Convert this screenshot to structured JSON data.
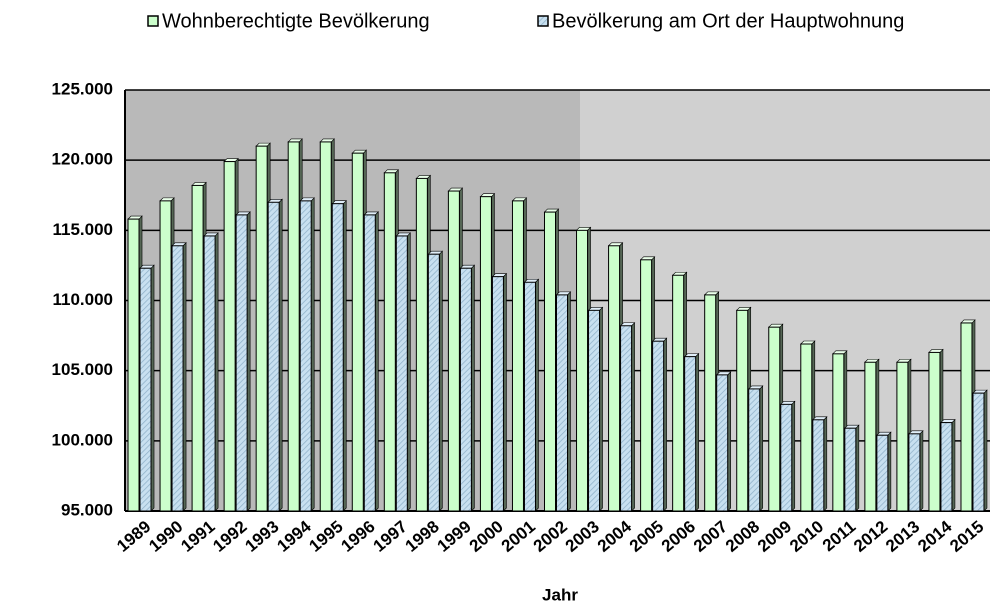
{
  "chart_data": {
    "type": "bar",
    "x_label": "Jahr",
    "categories": [
      "1989",
      "1990",
      "1991",
      "1992",
      "1993",
      "1994",
      "1995",
      "1996",
      "1997",
      "1998",
      "1999",
      "2000",
      "2001",
      "2002",
      "2003",
      "2004",
      "2005",
      "2006",
      "2007",
      "2008",
      "2009",
      "2010",
      "2011",
      "2012",
      "2013",
      "2014",
      "2015"
    ],
    "series": [
      {
        "name": "Wohnberechtigte Bevölkerung",
        "color": "#ccffcc",
        "values": [
          115800,
          117100,
          118200,
          119900,
          121000,
          121300,
          121300,
          120500,
          119100,
          118700,
          117800,
          117400,
          117100,
          116300,
          115000,
          113900,
          112900,
          111800,
          110400,
          109300,
          108100,
          106900,
          106200,
          105600,
          105600,
          106300,
          108400
        ]
      },
      {
        "name": "Bevölkerung am Ort der Hauptwohnung",
        "color": "#c8e0f0",
        "values": [
          112300,
          113900,
          114600,
          116100,
          117000,
          117100,
          116900,
          116100,
          114600,
          113300,
          112300,
          111700,
          111300,
          110400,
          109300,
          108200,
          107100,
          106000,
          104700,
          103700,
          102600,
          101500,
          100900,
          100400,
          100500,
          101300,
          103400
        ]
      }
    ],
    "ylim": [
      95000,
      125000
    ],
    "yticks": [
      {
        "value": 95000,
        "label": "95.000"
      },
      {
        "value": 100000,
        "label": "100.000"
      },
      {
        "value": 105000,
        "label": "105.000"
      },
      {
        "value": 110000,
        "label": "110.000"
      },
      {
        "value": 115000,
        "label": "115.000"
      },
      {
        "value": 120000,
        "label": "120.000"
      },
      {
        "value": 125000,
        "label": "125.000"
      }
    ],
    "grid": true
  }
}
